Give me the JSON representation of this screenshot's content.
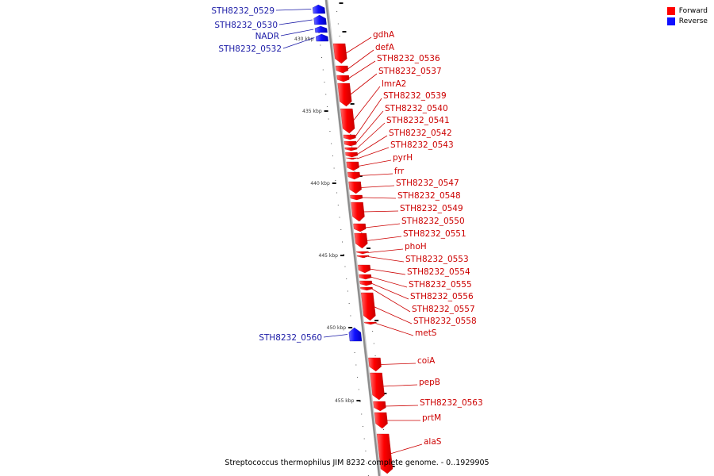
{
  "caption": "Streptococcus thermophilus JIM 8232 complete genome. - 0..1929905",
  "legend": [
    {
      "label": "Forward",
      "color": "#ff0000"
    },
    {
      "label": "Reverse",
      "color": "#1010ff"
    }
  ],
  "colors": {
    "forward_label": "#cc0000",
    "reverse_label": "#1a1aa6",
    "backbone": "#8c8c8c"
  },
  "scale_labels": [
    "430 kbp",
    "435 kbp",
    "440 kbp",
    "445 kbp",
    "450 kbp",
    "455 kbp"
  ],
  "reverse_genes": [
    "STH8232_0529",
    "STH8232_0530",
    "NADR",
    "STH8232_0532",
    "STH8232_0560"
  ],
  "forward_genes": [
    "gdhA",
    "defA",
    "STH8232_0536",
    "STH8232_0537",
    "lmrA2",
    "STH8232_0539",
    "STH8232_0540",
    "STH8232_0541",
    "STH8232_0542",
    "STH8232_0543",
    "pyrH",
    "frr",
    "STH8232_0547",
    "STH8232_0548",
    "STH8232_0549",
    "STH8232_0550",
    "STH8232_0551",
    "phoH",
    "STH8232_0553",
    "STH8232_0554",
    "STH8232_0555",
    "STH8232_0556",
    "STH8232_0557",
    "STH8232_0558",
    "metS",
    "coiA",
    "pepB",
    "STH8232_0563",
    "prtM",
    "alaS"
  ]
}
